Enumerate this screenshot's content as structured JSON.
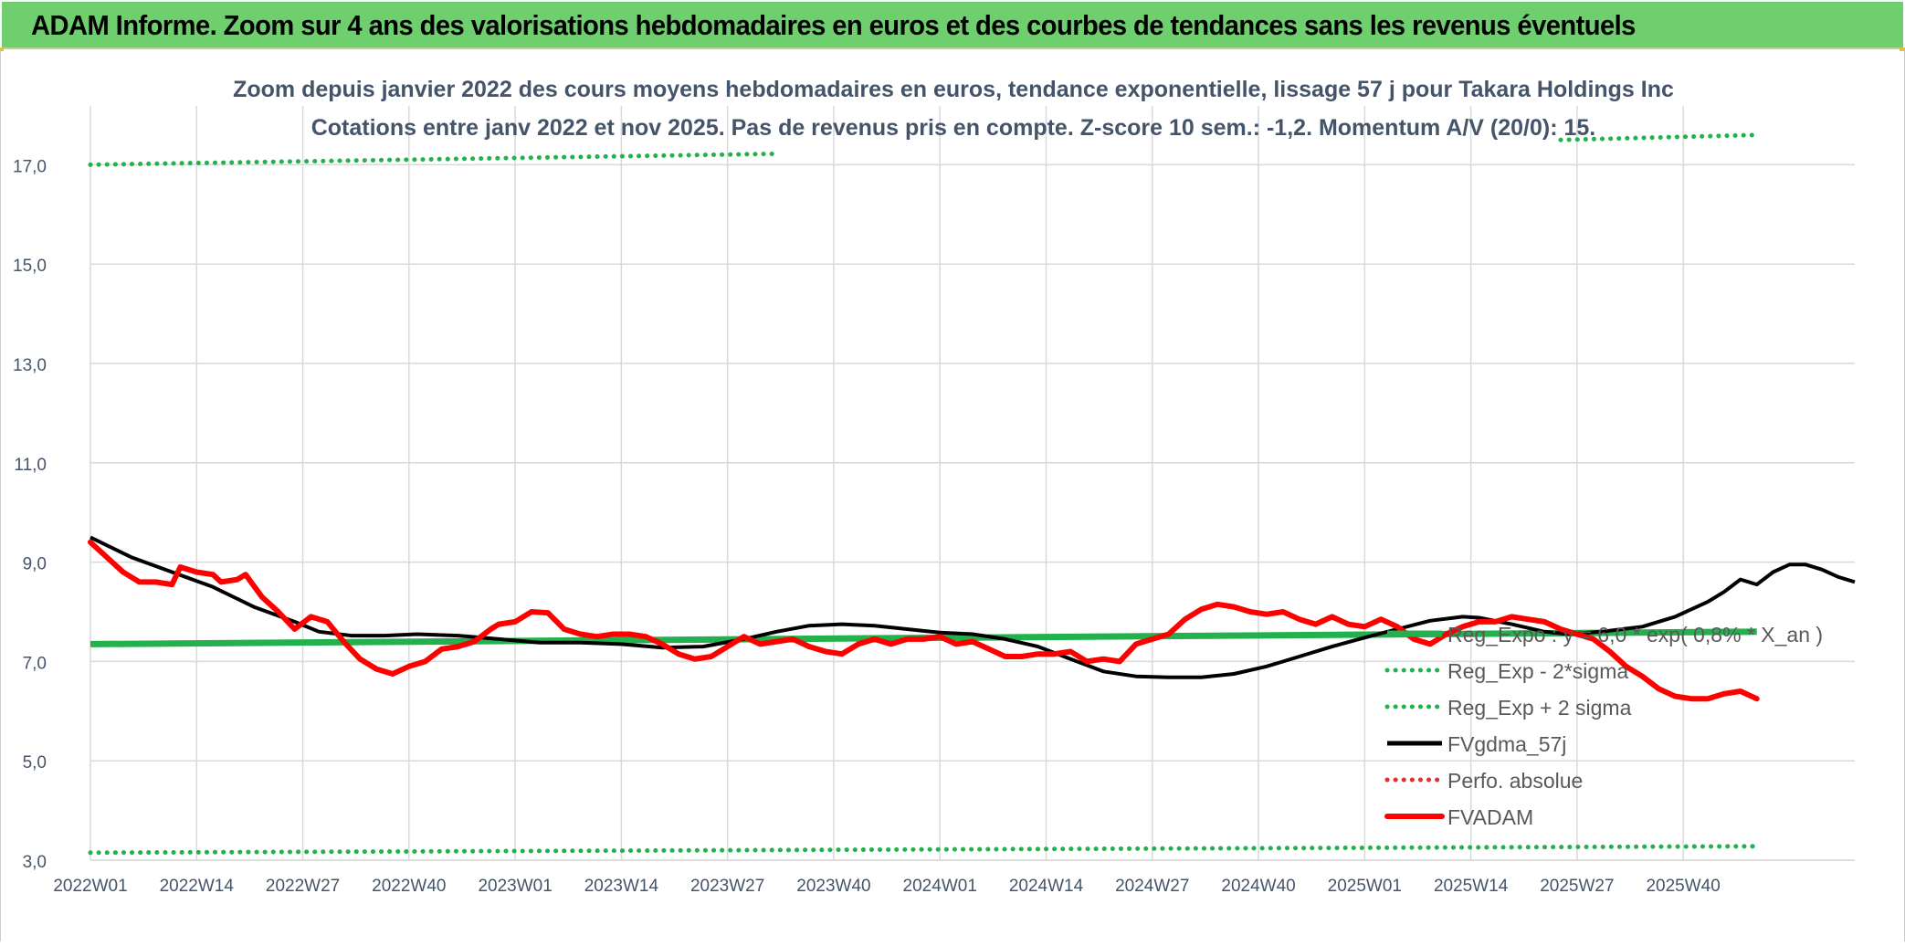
{
  "banner": {
    "title": "ADAM Informe. Zoom sur 4 ans des valorisations hebdomadaires en euros et des courbes de tendances sans les revenus éventuels"
  },
  "chart_data": {
    "type": "line",
    "title": "Zoom depuis janvier 2022 des cours moyens hebdomadaires en euros, tendance exponentielle, lissage 57 j pour Takara Holdings Inc",
    "subtitle": "Cotations entre janv 2022 et nov 2025. Pas de revenus pris en compte. Z-score 10 sem.: -1,2. Momentum A/V (20/0): 15.",
    "xlabel": "",
    "ylabel": "",
    "ylim": [
      3.0,
      18.0
    ],
    "yticks": [
      "3,0",
      "5,0",
      "7,0",
      "9,0",
      "11,0",
      "13,0",
      "15,0",
      "17,0"
    ],
    "ytick_values": [
      3,
      5,
      7,
      9,
      11,
      13,
      15,
      17
    ],
    "xticks": [
      "2022W01",
      "2022W14",
      "2022W27",
      "2022W40",
      "2023W01",
      "2023W14",
      "2023W27",
      "2023W40",
      "2024W01",
      "2024W14",
      "2024W27",
      "2024W40",
      "2025W01",
      "2025W14",
      "2025W27",
      "2025W40"
    ],
    "xtick_index": [
      0,
      13,
      26,
      39,
      52,
      65,
      78,
      91,
      104,
      117,
      130,
      143,
      156,
      169,
      182,
      195
    ],
    "n_weeks": 205,
    "grid": true,
    "legend_position": "bottom-right",
    "legend": [
      {
        "label": "Reg_Expo : y = 6,0 * exp( 0,8% * X_an )",
        "series": "reg_expo"
      },
      {
        "label": "Reg_Exp - 2*sigma",
        "series": "reg_minus"
      },
      {
        "label": "Reg_Exp + 2 sigma",
        "series": "reg_plus"
      },
      {
        "label": "FVgdma_57j",
        "series": "fvgdma"
      },
      {
        "label": "Perfo. absolue",
        "series": "perfo"
      },
      {
        "label": "FVADAM",
        "series": "fvadam"
      }
    ],
    "series": [
      {
        "name": "Reg_Expo : y = 6,0 * exp( 0,8% * X_an )",
        "key": "reg_expo",
        "color": "#22b14c",
        "style": "solid-thick",
        "points": [
          [
            0,
            7.35
          ],
          [
            204,
            7.6
          ]
        ]
      },
      {
        "name": "Reg_Exp - 2*sigma",
        "key": "reg_minus",
        "color": "#22b14c",
        "style": "dotted",
        "points": [
          [
            0,
            3.15
          ],
          [
            204,
            3.28
          ]
        ]
      },
      {
        "name": "Reg_Exp + 2 sigma",
        "key": "reg_plus",
        "color": "#22b14c",
        "style": "dotted",
        "segments": [
          [
            [
              0,
              17.0
            ],
            [
              84,
              17.22
            ]
          ],
          [
            [
              180,
              17.5
            ],
            [
              204,
              17.6
            ]
          ]
        ]
      },
      {
        "name": "FVgdma_57j",
        "key": "fvgdma",
        "color": "#000000",
        "style": "solid",
        "points": [
          [
            0,
            9.5
          ],
          [
            5,
            9.1
          ],
          [
            10,
            8.8
          ],
          [
            15,
            8.5
          ],
          [
            20,
            8.1
          ],
          [
            25,
            7.8
          ],
          [
            28,
            7.6
          ],
          [
            32,
            7.52
          ],
          [
            36,
            7.52
          ],
          [
            40,
            7.55
          ],
          [
            45,
            7.52
          ],
          [
            50,
            7.45
          ],
          [
            55,
            7.38
          ],
          [
            60,
            7.38
          ],
          [
            65,
            7.35
          ],
          [
            70,
            7.28
          ],
          [
            75,
            7.3
          ],
          [
            80,
            7.45
          ],
          [
            84,
            7.6
          ],
          [
            88,
            7.72
          ],
          [
            92,
            7.75
          ],
          [
            96,
            7.72
          ],
          [
            100,
            7.65
          ],
          [
            104,
            7.58
          ],
          [
            108,
            7.55
          ],
          [
            112,
            7.45
          ],
          [
            116,
            7.3
          ],
          [
            120,
            7.05
          ],
          [
            124,
            6.8
          ],
          [
            128,
            6.7
          ],
          [
            132,
            6.68
          ],
          [
            136,
            6.68
          ],
          [
            140,
            6.75
          ],
          [
            144,
            6.9
          ],
          [
            148,
            7.1
          ],
          [
            152,
            7.3
          ],
          [
            156,
            7.48
          ],
          [
            160,
            7.65
          ],
          [
            164,
            7.82
          ],
          [
            168,
            7.9
          ],
          [
            170,
            7.88
          ],
          [
            174,
            7.75
          ],
          [
            178,
            7.6
          ],
          [
            181,
            7.55
          ],
          [
            185,
            7.6
          ],
          [
            190,
            7.7
          ],
          [
            194,
            7.9
          ],
          [
            198,
            8.2
          ],
          [
            200,
            8.4
          ],
          [
            202,
            8.65
          ],
          [
            204,
            8.55
          ],
          [
            206,
            8.8
          ],
          [
            208,
            8.95
          ],
          [
            210,
            8.95
          ],
          [
            212,
            8.85
          ],
          [
            214,
            8.7
          ],
          [
            216,
            8.6
          ]
        ]
      },
      {
        "name": "Perfo. absolue",
        "key": "perfo",
        "color": "#e03030",
        "style": "dotted",
        "points": []
      },
      {
        "name": "FVADAM",
        "key": "fvadam",
        "color": "#ff0000",
        "style": "solid-thick",
        "points": [
          [
            0,
            9.4
          ],
          [
            2,
            9.1
          ],
          [
            4,
            8.8
          ],
          [
            6,
            8.6
          ],
          [
            8,
            8.6
          ],
          [
            10,
            8.55
          ],
          [
            11,
            8.9
          ],
          [
            13,
            8.8
          ],
          [
            15,
            8.75
          ],
          [
            16,
            8.6
          ],
          [
            18,
            8.65
          ],
          [
            19,
            8.75
          ],
          [
            21,
            8.3
          ],
          [
            23,
            8.0
          ],
          [
            25,
            7.65
          ],
          [
            27,
            7.9
          ],
          [
            29,
            7.8
          ],
          [
            31,
            7.4
          ],
          [
            33,
            7.05
          ],
          [
            35,
            6.85
          ],
          [
            37,
            6.75
          ],
          [
            39,
            6.9
          ],
          [
            41,
            7.0
          ],
          [
            43,
            7.25
          ],
          [
            45,
            7.3
          ],
          [
            47,
            7.4
          ],
          [
            49,
            7.65
          ],
          [
            50,
            7.75
          ],
          [
            52,
            7.8
          ],
          [
            54,
            8.0
          ],
          [
            56,
            7.98
          ],
          [
            58,
            7.65
          ],
          [
            60,
            7.55
          ],
          [
            62,
            7.5
          ],
          [
            64,
            7.55
          ],
          [
            66,
            7.55
          ],
          [
            68,
            7.5
          ],
          [
            70,
            7.35
          ],
          [
            72,
            7.15
          ],
          [
            74,
            7.05
          ],
          [
            76,
            7.1
          ],
          [
            78,
            7.3
          ],
          [
            80,
            7.5
          ],
          [
            82,
            7.35
          ],
          [
            84,
            7.4
          ],
          [
            86,
            7.45
          ],
          [
            88,
            7.3
          ],
          [
            90,
            7.2
          ],
          [
            92,
            7.15
          ],
          [
            94,
            7.35
          ],
          [
            96,
            7.45
          ],
          [
            98,
            7.35
          ],
          [
            100,
            7.45
          ],
          [
            102,
            7.45
          ],
          [
            104,
            7.5
          ],
          [
            106,
            7.35
          ],
          [
            108,
            7.4
          ],
          [
            110,
            7.25
          ],
          [
            112,
            7.1
          ],
          [
            114,
            7.1
          ],
          [
            116,
            7.15
          ],
          [
            118,
            7.15
          ],
          [
            120,
            7.2
          ],
          [
            122,
            7.0
          ],
          [
            124,
            7.05
          ],
          [
            126,
            7.0
          ],
          [
            128,
            7.35
          ],
          [
            130,
            7.45
          ],
          [
            132,
            7.55
          ],
          [
            134,
            7.85
          ],
          [
            136,
            8.05
          ],
          [
            138,
            8.15
          ],
          [
            140,
            8.1
          ],
          [
            142,
            8.0
          ],
          [
            144,
            7.95
          ],
          [
            146,
            8.0
          ],
          [
            148,
            7.85
          ],
          [
            150,
            7.75
          ],
          [
            152,
            7.9
          ],
          [
            154,
            7.75
          ],
          [
            156,
            7.7
          ],
          [
            158,
            7.85
          ],
          [
            160,
            7.7
          ],
          [
            162,
            7.45
          ],
          [
            164,
            7.35
          ],
          [
            166,
            7.55
          ],
          [
            168,
            7.7
          ],
          [
            170,
            7.8
          ],
          [
            172,
            7.8
          ],
          [
            174,
            7.9
          ],
          [
            176,
            7.85
          ],
          [
            178,
            7.8
          ],
          [
            180,
            7.65
          ],
          [
            182,
            7.55
          ],
          [
            184,
            7.45
          ],
          [
            186,
            7.2
          ],
          [
            188,
            6.9
          ],
          [
            190,
            6.7
          ],
          [
            192,
            6.45
          ],
          [
            194,
            6.3
          ],
          [
            196,
            6.25
          ],
          [
            198,
            6.25
          ],
          [
            200,
            6.35
          ],
          [
            202,
            6.4
          ],
          [
            204,
            6.25
          ]
        ]
      }
    ]
  }
}
